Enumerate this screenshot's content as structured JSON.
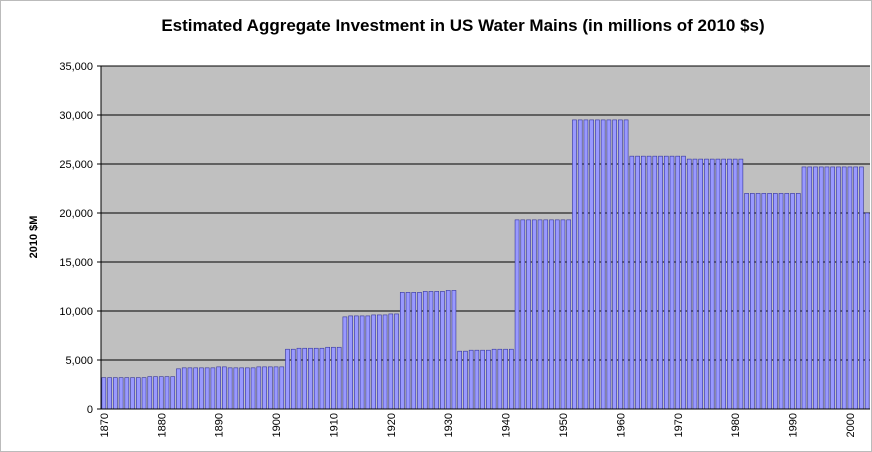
{
  "chart_data": {
    "type": "bar",
    "title": "Estimated Aggregate Investment in US Water Mains (in millions of 2010 $s)",
    "y_label": "2010 $M",
    "categories": [
      "1870",
      null,
      null,
      null,
      null,
      null,
      null,
      null,
      null,
      null,
      "1880",
      null,
      null,
      null,
      null,
      null,
      null,
      null,
      null,
      null,
      "1890",
      null,
      null,
      null,
      null,
      null,
      null,
      null,
      null,
      null,
      "1900",
      null,
      null,
      null,
      null,
      null,
      null,
      null,
      null,
      null,
      "1910",
      null,
      null,
      null,
      null,
      null,
      null,
      null,
      null,
      null,
      "1920",
      null,
      null,
      null,
      null,
      null,
      null,
      null,
      null,
      null,
      "1930",
      null,
      null,
      null,
      null,
      null,
      null,
      null,
      null,
      null,
      "1940",
      null,
      null,
      null,
      null,
      null,
      null,
      null,
      null,
      null,
      "1950",
      null,
      null,
      null,
      null,
      null,
      null,
      null,
      null,
      null,
      "1960",
      null,
      null,
      null,
      null,
      null,
      null,
      null,
      null,
      null,
      "1970",
      null,
      null,
      null,
      null,
      null,
      null,
      null,
      null,
      null,
      "1980",
      null,
      null,
      null,
      null,
      null,
      null,
      null,
      null,
      null,
      "1990",
      null,
      null,
      null,
      null,
      null,
      null,
      null,
      null,
      null,
      "2000",
      null,
      null,
      null
    ],
    "values": [
      3200,
      3200,
      3200,
      3200,
      3200,
      3200,
      3200,
      3200,
      3300,
      3300,
      3300,
      3300,
      3300,
      4100,
      4200,
      4200,
      4200,
      4200,
      4200,
      4200,
      4300,
      4300,
      4200,
      4200,
      4200,
      4200,
      4200,
      4300,
      4300,
      4300,
      4300,
      4300,
      6100,
      6100,
      6200,
      6200,
      6200,
      6200,
      6200,
      6300,
      6300,
      6300,
      9400,
      9500,
      9500,
      9500,
      9500,
      9600,
      9600,
      9600,
      9700,
      9700,
      11900,
      11900,
      11900,
      11900,
      12000,
      12000,
      12000,
      12000,
      12100,
      12100,
      5900,
      5900,
      6000,
      6000,
      6000,
      6000,
      6100,
      6100,
      6100,
      6100,
      19300,
      19300,
      19300,
      19300,
      19300,
      19300,
      19300,
      19300,
      19300,
      19300,
      29500,
      29500,
      29500,
      29500,
      29500,
      29500,
      29500,
      29500,
      29500,
      29500,
      25800,
      25800,
      25800,
      25800,
      25800,
      25800,
      25800,
      25800,
      25800,
      25800,
      25500,
      25500,
      25500,
      25500,
      25500,
      25500,
      25500,
      25500,
      25500,
      25500,
      22000,
      22000,
      22000,
      22000,
      22000,
      22000,
      22000,
      22000,
      22000,
      22000,
      24700,
      24700,
      24700,
      24700,
      24700,
      24700,
      24700,
      24700,
      24700,
      24700,
      24700,
      20000
    ],
    "color": "#9999ff",
    "ylim": [
      0,
      35000
    ],
    "yticks": [
      0,
      {
        "value": 5000,
        "label": "5,000"
      },
      {
        "value": 10000,
        "label": "10,000"
      },
      {
        "value": 15000,
        "label": "15,000"
      },
      {
        "value": 20000,
        "label": "20,000"
      },
      {
        "value": 25000,
        "label": "25,000"
      },
      {
        "value": 30000,
        "label": "30,000"
      },
      {
        "value": 35000,
        "label": "35,000"
      }
    ],
    "grid": true
  }
}
